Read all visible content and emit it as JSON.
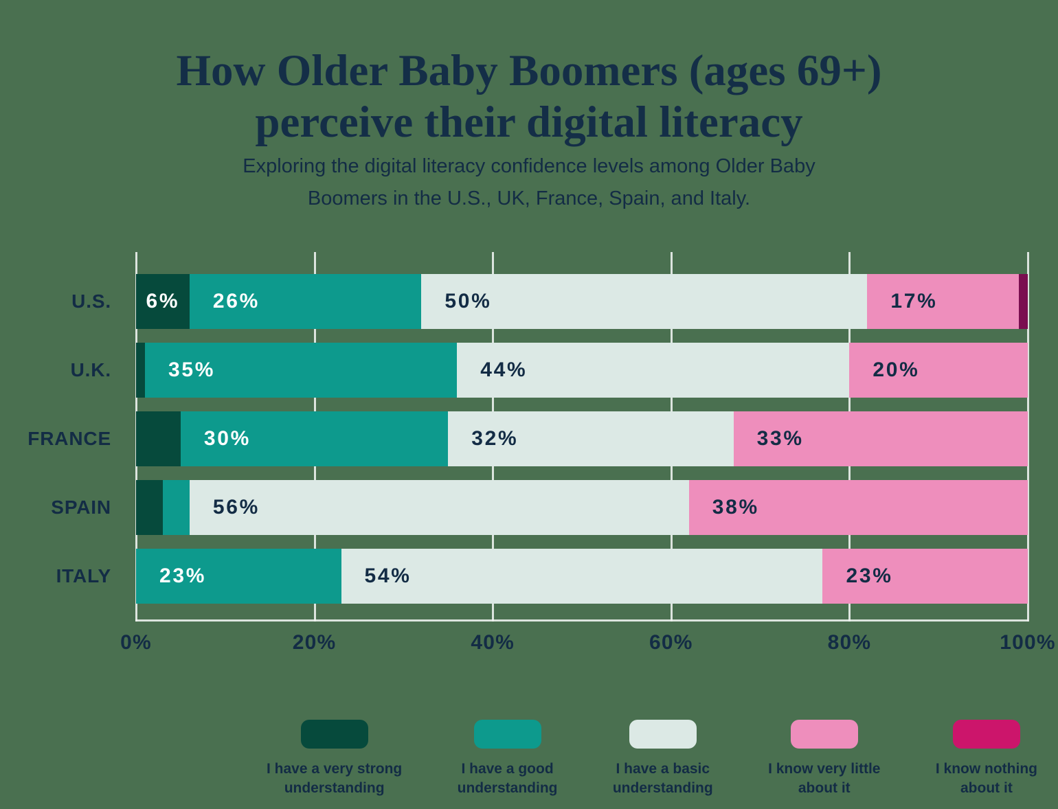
{
  "title": {
    "line1": "How Older Baby Boomers (ages 69+)",
    "line2": "perceive their digital literacy"
  },
  "subtitle": {
    "line1": "Exploring the digital literacy confidence levels among Older Baby",
    "line2": "Boomers in the U.S., UK, France, Spain, and Italy."
  },
  "colors": {
    "background": "#4a7050",
    "text": "#132c45",
    "gridline": "#f0f4f1",
    "very_strong": "#064a3c",
    "good": "#0d9a8d",
    "basic": "#dce9e5",
    "very_little": "#ee8ebc",
    "nothing_bar": "#7a0e50",
    "nothing_legend": "#cc156b"
  },
  "chart_data": {
    "type": "bar",
    "stacked": true,
    "orientation": "horizontal",
    "title": "How Older Baby Boomers (ages 69+) perceive their digital literacy",
    "xlabel": "",
    "ylabel": "",
    "xlim": [
      0,
      100
    ],
    "grid": true,
    "legend_position": "bottom",
    "categories": [
      "U.S.",
      "U.K.",
      "FRANCE",
      "SPAIN",
      "ITALY"
    ],
    "x_ticks": [
      "0%",
      "20%",
      "40%",
      "60%",
      "80%",
      "100%"
    ],
    "series": [
      {
        "name": "I have a very strong understanding",
        "color": "#064a3c",
        "text_color": "#ffffff",
        "values": [
          6,
          1,
          5,
          3,
          0
        ]
      },
      {
        "name": "I have a good understanding",
        "color": "#0d9a8d",
        "text_color": "#ffffff",
        "values": [
          26,
          35,
          30,
          3,
          23
        ]
      },
      {
        "name": "I have a basic understanding",
        "color": "#dce9e5",
        "text_color": "#132c45",
        "values": [
          50,
          44,
          32,
          56,
          54
        ]
      },
      {
        "name": "I know very little about it",
        "color": "#ee8ebc",
        "text_color": "#132c45",
        "values": [
          17,
          20,
          33,
          38,
          23
        ]
      },
      {
        "name": "I know nothing about it",
        "color": "#7a0e50",
        "text_color": "#ffffff",
        "values": [
          1,
          0,
          0,
          0,
          0
        ]
      }
    ],
    "value_labels": [
      [
        "6%",
        "26%",
        "50%",
        "17%",
        null
      ],
      [
        null,
        "35%",
        "44%",
        "20%",
        null
      ],
      [
        null,
        "30%",
        "32%",
        "33%",
        null
      ],
      [
        null,
        null,
        "56%",
        "38%",
        null
      ],
      [
        null,
        "23%",
        "54%",
        "23%",
        null
      ]
    ],
    "legend": [
      {
        "label": "I have a very strong\nunderstanding",
        "color": "#064a3c"
      },
      {
        "label": "I have a good\nunderstanding",
        "color": "#0d9a8d"
      },
      {
        "label": "I have a basic\nunderstanding",
        "color": "#dce9e5"
      },
      {
        "label": "I know very little\nabout it",
        "color": "#ee8ebc"
      },
      {
        "label": "I know nothing\nabout it",
        "color": "#cc156b"
      }
    ]
  }
}
